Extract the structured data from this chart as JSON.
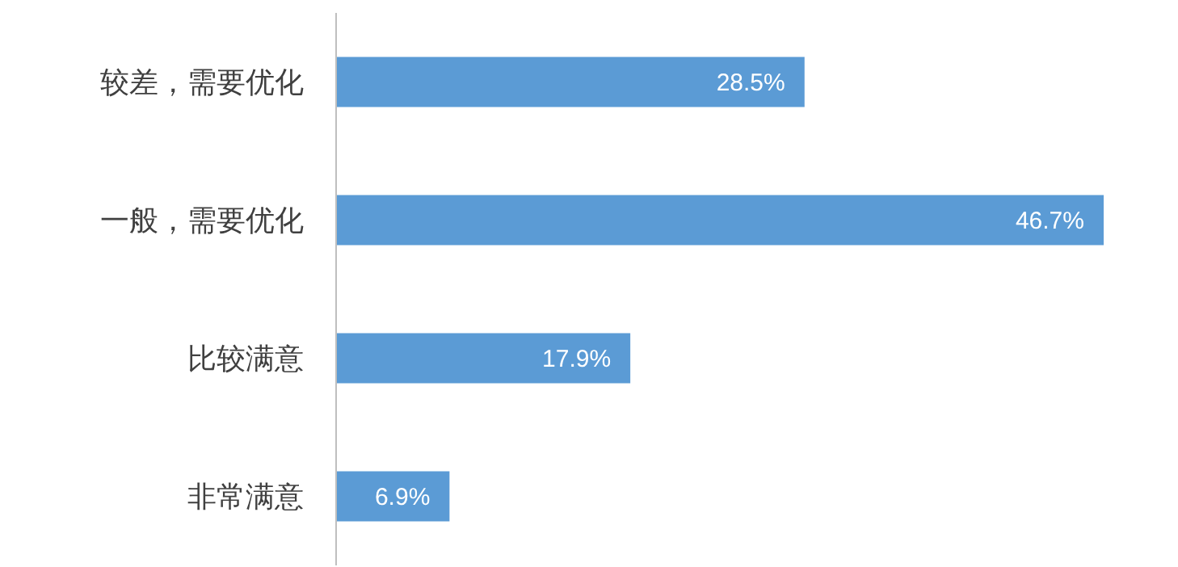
{
  "chart_data": {
    "type": "bar",
    "orientation": "horizontal",
    "categories": [
      "较差，需要优化",
      "一般，需要优化",
      "比较满意",
      "非常满意"
    ],
    "values": [
      28.5,
      46.7,
      17.9,
      6.9
    ],
    "value_labels": [
      "28.5%",
      "46.7%",
      "17.9%",
      "6.9%"
    ],
    "color": "#5b9bd5"
  }
}
